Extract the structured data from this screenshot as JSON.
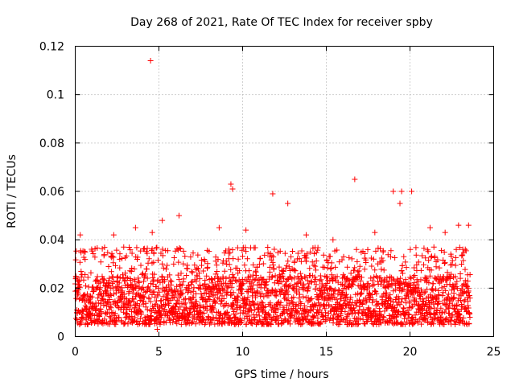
{
  "chart_data": {
    "type": "scatter",
    "title": "Day 268 of 2021, Rate Of TEC Index for receiver spby",
    "xlabel": "GPS time / hours",
    "ylabel": "ROTI / TECUs",
    "xlim": [
      0,
      25
    ],
    "ylim": [
      0,
      0.12
    ],
    "xticks": [
      0,
      5,
      10,
      15,
      20,
      25
    ],
    "xtick_labels": [
      "0",
      "5",
      "10",
      "15",
      "20",
      "25"
    ],
    "yticks": [
      0,
      0.02,
      0.04,
      0.06,
      0.08,
      0.1,
      0.12
    ],
    "ytick_labels": [
      "0",
      "0.02",
      "0.04",
      "0.06",
      "0.08",
      "0.1",
      "0.12"
    ],
    "grid": true,
    "marker": "+",
    "color": "#ff0000",
    "series": [
      {
        "name": "ROTI",
        "x_range": [
          0,
          23.6
        ],
        "baseline_band": [
          0.005,
          0.025
        ],
        "notable_points": [
          {
            "x": 4.5,
            "y": 0.114
          },
          {
            "x": 16.7,
            "y": 0.065
          },
          {
            "x": 9.3,
            "y": 0.063
          },
          {
            "x": 9.4,
            "y": 0.061
          },
          {
            "x": 19.0,
            "y": 0.06
          },
          {
            "x": 19.5,
            "y": 0.06
          },
          {
            "x": 20.1,
            "y": 0.06
          },
          {
            "x": 11.8,
            "y": 0.059
          },
          {
            "x": 12.7,
            "y": 0.055
          },
          {
            "x": 19.4,
            "y": 0.055
          },
          {
            "x": 6.2,
            "y": 0.05
          },
          {
            "x": 5.2,
            "y": 0.048
          },
          {
            "x": 22.9,
            "y": 0.046
          },
          {
            "x": 23.5,
            "y": 0.046
          },
          {
            "x": 4.6,
            "y": 0.043
          },
          {
            "x": 3.6,
            "y": 0.045
          },
          {
            "x": 0.3,
            "y": 0.042
          },
          {
            "x": 2.3,
            "y": 0.042
          },
          {
            "x": 8.6,
            "y": 0.045
          },
          {
            "x": 10.2,
            "y": 0.044
          },
          {
            "x": 13.8,
            "y": 0.042
          },
          {
            "x": 15.4,
            "y": 0.04
          },
          {
            "x": 17.9,
            "y": 0.043
          },
          {
            "x": 21.2,
            "y": 0.045
          },
          {
            "x": 22.1,
            "y": 0.043
          },
          {
            "x": 4.9,
            "y": 0.003
          }
        ]
      }
    ]
  }
}
